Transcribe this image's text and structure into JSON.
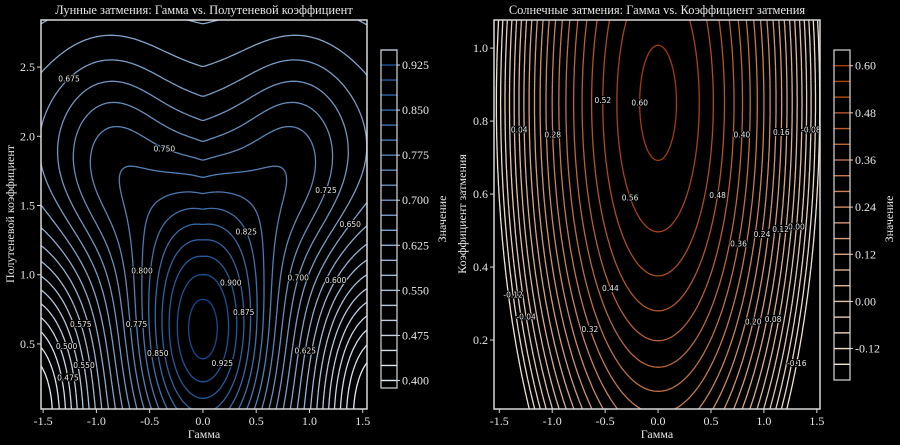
{
  "chart_data": [
    {
      "type": "contour",
      "title": "Лунные затмения: Гамма vs. Полутеневой коэффициент",
      "xlabel": "Гамма",
      "ylabel": "Полутеневой коэффициент",
      "xlim": [
        -1.52,
        1.54
      ],
      "ylim": [
        0.03,
        2.84
      ],
      "xticks": [
        "-1.5",
        "-1.0",
        "-0.5",
        "0.0",
        "0.5",
        "1.0",
        "1.5"
      ],
      "xtick_values": [
        -1.5,
        -1.0,
        -0.5,
        0.0,
        0.5,
        1.0,
        1.5
      ],
      "yticks": [
        "0.5",
        "1.0",
        "1.5",
        "2.0",
        "2.5"
      ],
      "ytick_values": [
        0.5,
        1.0,
        1.5,
        2.0,
        2.5
      ],
      "levels": {
        "start": 0.4,
        "stop": 0.95,
        "step": 0.025
      },
      "colormap": {
        "low": "#e4ecf4",
        "high": "#0d4d96"
      },
      "model": "lunar",
      "contour_labels": [
        "0.475",
        "0.500",
        "0.550",
        "0.575",
        "0.600",
        "0.625",
        "0.650",
        "0.675",
        "0.700",
        "0.725",
        "0.750",
        "0.775",
        "0.800",
        "0.825",
        "0.850",
        "0.875",
        "0.900",
        "0.925"
      ],
      "colorbar": {
        "label": "Значение",
        "range": [
          0.3875,
          0.95
        ],
        "ticks": [
          "0.925",
          "0.850",
          "0.775",
          "0.700",
          "0.625",
          "0.550",
          "0.475",
          "0.400"
        ],
        "tick_values": [
          0.925,
          0.85,
          0.775,
          0.7,
          0.625,
          0.55,
          0.475,
          0.4
        ]
      }
    },
    {
      "type": "contour",
      "title": "Солнечные затмения: Гамма vs. Коэффициент затмения",
      "xlabel": "Гамма",
      "ylabel": "Коэффициент затмения",
      "xlim": [
        -1.55,
        1.53
      ],
      "ylim": [
        0.011,
        1.077
      ],
      "xticks": [
        "-1.5",
        "-1.0",
        "-0.5",
        "0.0",
        "0.5",
        "1.0",
        "1.5"
      ],
      "xtick_values": [
        -1.5,
        -1.0,
        -0.5,
        0.0,
        0.5,
        1.0,
        1.5
      ],
      "yticks": [
        "0.2",
        "0.4",
        "0.6",
        "0.8",
        "1.0"
      ],
      "ytick_values": [
        0.2,
        0.4,
        0.6,
        0.8,
        1.0
      ],
      "levels": {
        "start": -0.16,
        "stop": 0.6,
        "step": 0.04
      },
      "colormap": {
        "low": "#f3e3cf",
        "high": "#a83a04"
      },
      "model": "solar",
      "contour_labels": [
        "-0.16",
        "-0.12",
        "-0.08",
        "-0.04",
        "0.00",
        "0.04",
        "0.08",
        "0.12",
        "0.16",
        "0.20",
        "0.24",
        "0.28",
        "0.32",
        "0.36",
        "0.40",
        "0.44",
        "0.48",
        "0.52",
        "0.56",
        "0.60"
      ],
      "colorbar": {
        "label": "Значение",
        "range": [
          -0.2,
          0.64
        ],
        "ticks": [
          "0.60",
          "0.48",
          "0.36",
          "0.24",
          "0.12",
          "0.00",
          "-0.12"
        ],
        "tick_values": [
          0.6,
          0.48,
          0.36,
          0.24,
          0.12,
          0.0,
          -0.12
        ]
      }
    }
  ]
}
